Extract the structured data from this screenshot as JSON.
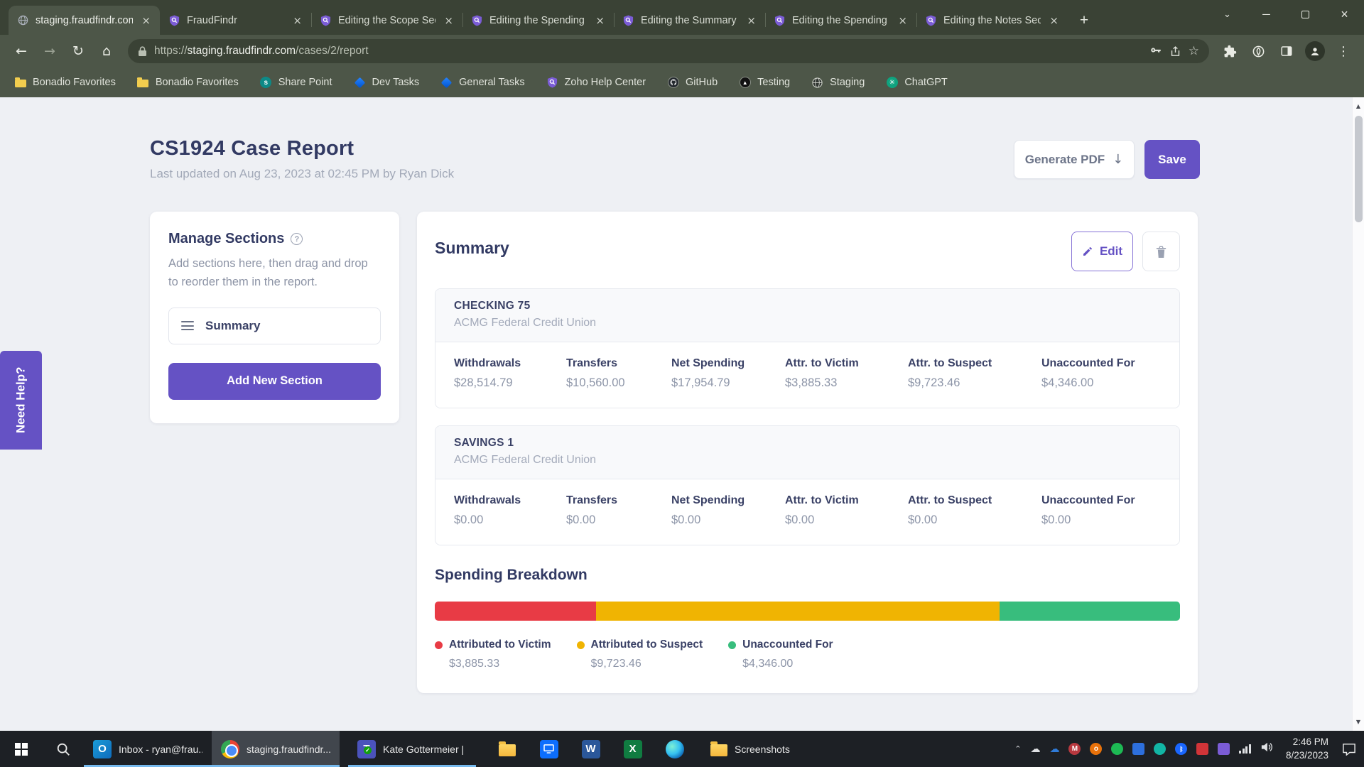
{
  "browser": {
    "tabs": [
      {
        "title": "staging.fraudfindr.com"
      },
      {
        "title": "FraudFindr"
      },
      {
        "title": "Editing the Scope Sec"
      },
      {
        "title": "Editing the Spending"
      },
      {
        "title": "Editing the Summary"
      },
      {
        "title": "Editing the Spending"
      },
      {
        "title": "Editing the Notes Sec"
      }
    ],
    "address": {
      "prefix": "https://",
      "host": "staging.fraudfindr.com",
      "path": "/cases/2/report"
    },
    "bookmarks": [
      {
        "label": "Bonadio Favorites"
      },
      {
        "label": "Bonadio Favorites"
      },
      {
        "label": "Share Point"
      },
      {
        "label": "Dev Tasks"
      },
      {
        "label": "General Tasks"
      },
      {
        "label": "Zoho Help Center"
      },
      {
        "label": "GitHub"
      },
      {
        "label": "Testing"
      },
      {
        "label": "Staging"
      },
      {
        "label": "ChatGPT"
      }
    ]
  },
  "page": {
    "title": "CS1924 Case Report",
    "subtitle": "Last updated on Aug 23, 2023 at 02:45 PM by Ryan Dick",
    "actions": {
      "generate_pdf": "Generate PDF",
      "save": "Save"
    },
    "need_help": "Need Help?",
    "manage_sections": {
      "title": "Manage Sections",
      "description": "Add sections here, then drag and drop to reorder them in the report.",
      "items": [
        {
          "label": "Summary"
        }
      ],
      "add_button": "Add New Section"
    },
    "summary": {
      "title": "Summary",
      "edit_button": "Edit",
      "accounts": [
        {
          "name": "CHECKING 75",
          "institution": "ACMG Federal Credit Union",
          "stats": [
            {
              "label": "Withdrawals",
              "value": "$28,514.79"
            },
            {
              "label": "Transfers",
              "value": "$10,560.00"
            },
            {
              "label": "Net Spending",
              "value": "$17,954.79"
            },
            {
              "label": "Attr. to Victim",
              "value": "$3,885.33"
            },
            {
              "label": "Attr. to Suspect",
              "value": "$9,723.46"
            },
            {
              "label": "Unaccounted For",
              "value": "$4,346.00"
            }
          ]
        },
        {
          "name": "SAVINGS 1",
          "institution": "ACMG Federal Credit Union",
          "stats": [
            {
              "label": "Withdrawals",
              "value": "$0.00"
            },
            {
              "label": "Transfers",
              "value": "$0.00"
            },
            {
              "label": "Net Spending",
              "value": "$0.00"
            },
            {
              "label": "Attr. to Victim",
              "value": "$0.00"
            },
            {
              "label": "Attr. to Suspect",
              "value": "$0.00"
            },
            {
              "label": "Unaccounted For",
              "value": "$0.00"
            }
          ]
        }
      ],
      "spending_breakdown": {
        "title": "Spending Breakdown",
        "segments": [
          {
            "label": "Attributed to Victim",
            "value": "$3,885.33",
            "color": "#e83b45",
            "percent": 21.64
          },
          {
            "label": "Attributed to Suspect",
            "value": "$9,723.46",
            "color": "#f0b402",
            "percent": 54.15
          },
          {
            "label": "Unaccounted For",
            "value": "$4,346.00",
            "color": "#38bd7d",
            "percent": 24.21
          }
        ]
      }
    }
  },
  "chart_data": {
    "type": "bar",
    "title": "Spending Breakdown",
    "categories": [
      "Attributed to Victim",
      "Attributed to Suspect",
      "Unaccounted For"
    ],
    "values": [
      3885.33,
      9723.46,
      4346.0
    ],
    "colors": [
      "#e83b45",
      "#f0b402",
      "#38bd7d"
    ],
    "total": 17954.79,
    "layout": "single horizontal stacked bar with legend of dollar amounts below"
  },
  "taskbar": {
    "apps": [
      {
        "label": "Inbox - ryan@frau..."
      },
      {
        "label": "staging.fraudfindr...."
      },
      {
        "label": "Kate Gottermeier | ..."
      }
    ],
    "screenshots_label": "Screenshots",
    "clock": {
      "time": "2:46 PM",
      "date": "8/23/2023"
    }
  },
  "theme": {
    "accent_purple": "#6552c4",
    "navy": "#323a63",
    "chrome_bg": "#3a4235",
    "toolbar_bg": "#4d5648"
  }
}
